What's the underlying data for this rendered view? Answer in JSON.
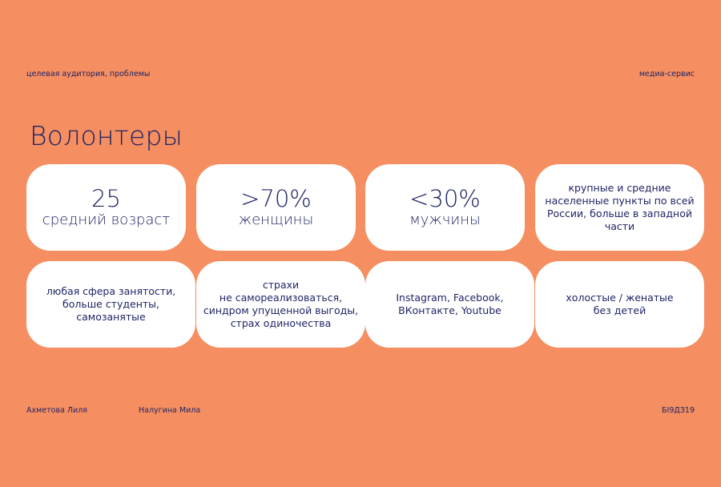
{
  "header": {
    "section": "целевая аудитория, проблемы",
    "project": "медиа-сервис"
  },
  "title": "Волонтеры",
  "cards": [
    {
      "value": "25",
      "label": "средний возраст"
    },
    {
      "value": ">70%",
      "label": "женщины"
    },
    {
      "value": "<30%",
      "label": "мужчины"
    },
    {
      "lines": [
        "крупные и средние",
        "населенные пункты по всей",
        "России, больше в западной",
        "части"
      ]
    },
    {
      "lines": [
        "любая сфера занятости,",
        "больше студенты,",
        "самозанятые"
      ]
    },
    {
      "lines": [
        "страхи",
        "не самореализоваться,",
        "синдром упущенной выгоды,",
        "страх одиночества"
      ]
    },
    {
      "lines": [
        "Instagram, Facebook,",
        "ВКонтакте, Youtube"
      ]
    },
    {
      "lines": [
        "холостые / женатые",
        "без детей"
      ]
    }
  ],
  "footer": {
    "author1": "Ахметова Лиля",
    "author2": "Налугина Мила",
    "group": "БІ9ДЗ19"
  },
  "colors": {
    "background": "#F58E60",
    "text": "#1F2466",
    "card": "#FFFFFF"
  }
}
